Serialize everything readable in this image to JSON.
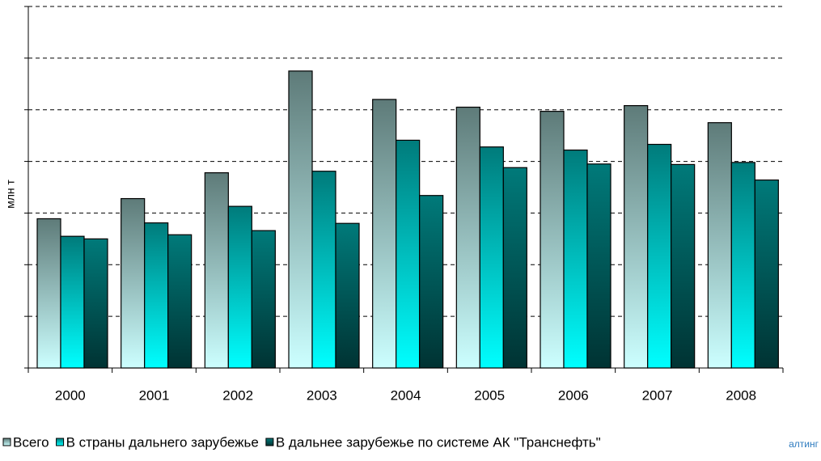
{
  "chart_data": {
    "type": "bar",
    "y_label": "млн т",
    "categories": [
      "2000",
      "2001",
      "2002",
      "2003",
      "2004",
      "2005",
      "2006",
      "2007",
      "2008"
    ],
    "series": [
      {
        "name": "Всего",
        "colors": [
          "#5e7b79",
          "#ccffff"
        ],
        "values": [
          2.89,
          3.28,
          3.78,
          5.75,
          5.2,
          5.05,
          4.97,
          5.08,
          4.75
        ]
      },
      {
        "name": "В страны дальнего зарубежье",
        "colors": [
          "#007b7b",
          "#00ffff"
        ],
        "values": [
          2.55,
          2.81,
          3.13,
          3.81,
          4.41,
          4.28,
          4.22,
          4.33,
          3.98
        ]
      },
      {
        "name": "В дальнее зарубежье по системе АК \"Транснефть\"",
        "colors": [
          "#007a7a",
          "#003333"
        ],
        "values": [
          2.5,
          2.58,
          2.66,
          2.8,
          3.34,
          3.88,
          3.95,
          3.94,
          3.64
        ]
      }
    ],
    "ylim": [
      0,
      7
    ],
    "yticks": [
      0,
      1,
      2,
      3,
      4,
      5,
      6,
      7
    ],
    "grid": true,
    "footer": "алтинг"
  }
}
